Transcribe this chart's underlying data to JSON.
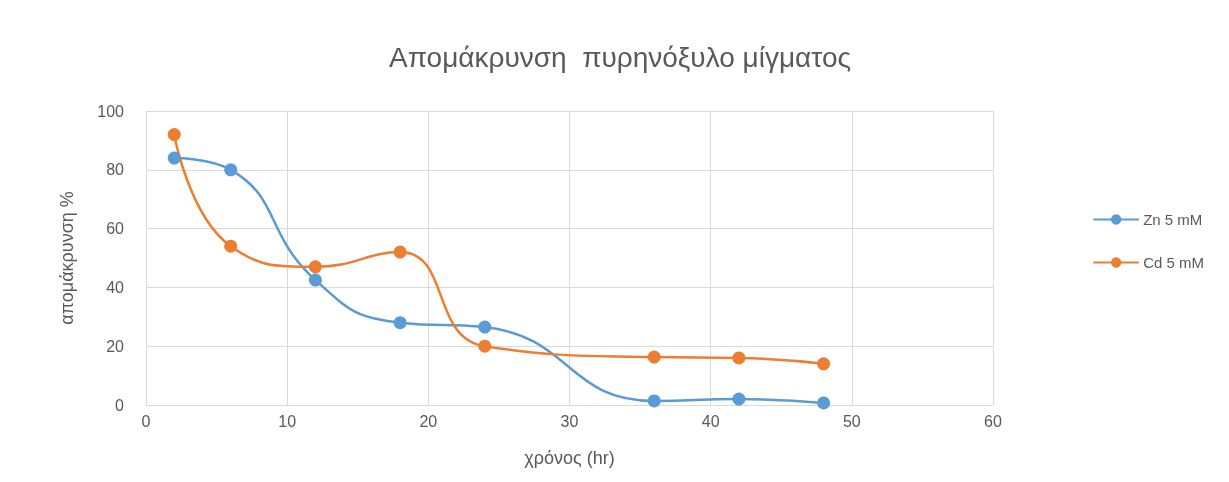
{
  "chart_data": {
    "type": "line",
    "title": "Απομάκρυνση  πυρηνόξυλο μίγματος",
    "xlabel": "χρόνος (hr)",
    "ylabel": "απομάκρυνση %",
    "x": [
      2,
      6,
      12,
      18,
      24,
      36,
      42,
      48
    ],
    "series": [
      {
        "name": "Zn 5 mM",
        "color": "#5b9bd5",
        "values": [
          84,
          80,
          42.5,
          28,
          26.5,
          1.4,
          2,
          0.7
        ]
      },
      {
        "name": "Cd 5 mM",
        "color": "#ed7d31",
        "values": [
          92,
          54,
          47,
          52,
          20,
          16.3,
          16,
          14
        ]
      }
    ],
    "xlim": [
      0,
      60
    ],
    "xticks": [
      0,
      10,
      20,
      30,
      40,
      50,
      60
    ],
    "ylim": [
      0,
      100
    ],
    "yticks": [
      0,
      20,
      40,
      60,
      80,
      100
    ],
    "grid": true,
    "legend": "right",
    "marker": "circle",
    "line_style": "solid"
  }
}
